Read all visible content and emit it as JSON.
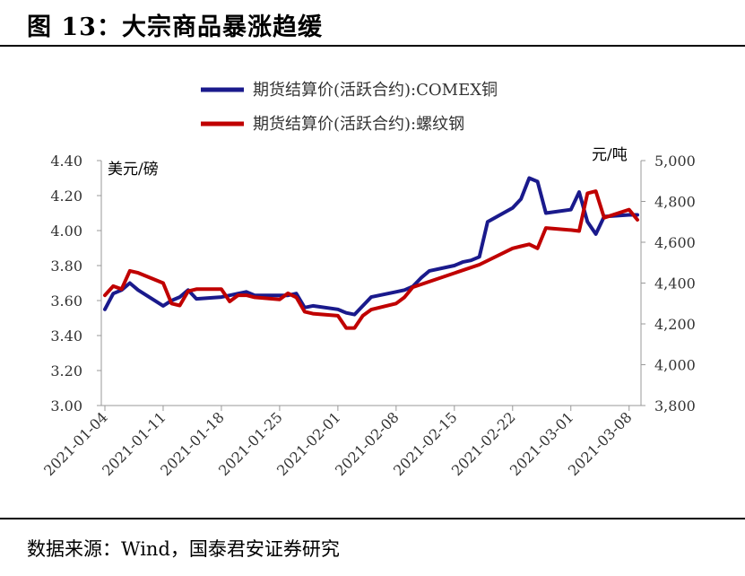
{
  "figure": {
    "title": "图 13：大宗商品暴涨趋缓",
    "source": "数据来源：Wind，国泰君安证券研究"
  },
  "chart_data": {
    "type": "line",
    "x_ticks": [
      "2021-01-04",
      "2021-01-11",
      "2021-01-18",
      "2021-01-25",
      "2021-02-01",
      "2021-02-08",
      "2021-02-15",
      "2021-02-22",
      "2021-03-01",
      "2021-03-08"
    ],
    "xlim": [
      "2021-01-04",
      "2021-03-09"
    ],
    "left_axis": {
      "unit": "美元/磅",
      "ticks": [
        "3.00",
        "3.20",
        "3.40",
        "3.60",
        "3.80",
        "4.00",
        "4.20",
        "4.40"
      ],
      "ylim": [
        3.0,
        4.4
      ]
    },
    "right_axis": {
      "unit": "元/吨",
      "ticks": [
        "3,800",
        "4,000",
        "4,200",
        "4,400",
        "4,600",
        "4,800",
        "5,000"
      ],
      "ylim": [
        3800,
        5000
      ]
    },
    "legend_position": "top-center",
    "grid": false,
    "series": [
      {
        "name": "期货结算价(活跃合约):COMEX铜",
        "axis": "left",
        "color": "#1a1a8c",
        "x": [
          "2021-01-04",
          "2021-01-05",
          "2021-01-06",
          "2021-01-07",
          "2021-01-08",
          "2021-01-11",
          "2021-01-12",
          "2021-01-13",
          "2021-01-14",
          "2021-01-15",
          "2021-01-18",
          "2021-01-19",
          "2021-01-20",
          "2021-01-21",
          "2021-01-22",
          "2021-01-25",
          "2021-01-26",
          "2021-01-27",
          "2021-01-28",
          "2021-01-29",
          "2021-02-01",
          "2021-02-02",
          "2021-02-03",
          "2021-02-04",
          "2021-02-05",
          "2021-02-08",
          "2021-02-09",
          "2021-02-10",
          "2021-02-11",
          "2021-02-12",
          "2021-02-15",
          "2021-02-16",
          "2021-02-17",
          "2021-02-18",
          "2021-02-19",
          "2021-02-22",
          "2021-02-23",
          "2021-02-24",
          "2021-02-25",
          "2021-02-26",
          "2021-03-01",
          "2021-03-02",
          "2021-03-03",
          "2021-03-04",
          "2021-03-05",
          "2021-03-08",
          "2021-03-09"
        ],
        "values": [
          3.55,
          3.64,
          3.66,
          3.7,
          3.66,
          3.57,
          3.6,
          3.62,
          3.66,
          3.61,
          3.62,
          3.63,
          3.64,
          3.65,
          3.63,
          3.63,
          3.63,
          3.64,
          3.56,
          3.57,
          3.55,
          3.53,
          3.52,
          3.57,
          3.62,
          3.65,
          3.66,
          3.68,
          3.73,
          3.77,
          3.8,
          3.82,
          3.83,
          3.85,
          4.05,
          4.13,
          4.18,
          4.3,
          4.28,
          4.1,
          4.12,
          4.22,
          4.05,
          3.98,
          4.08,
          4.09,
          4.09
        ]
      },
      {
        "name": "期货结算价(活跃合约):螺纹钢",
        "axis": "right",
        "color": "#c00000",
        "x": [
          "2021-01-04",
          "2021-01-05",
          "2021-01-06",
          "2021-01-07",
          "2021-01-08",
          "2021-01-11",
          "2021-01-12",
          "2021-01-13",
          "2021-01-14",
          "2021-01-15",
          "2021-01-18",
          "2021-01-19",
          "2021-01-20",
          "2021-01-21",
          "2021-01-22",
          "2021-01-25",
          "2021-01-26",
          "2021-01-27",
          "2021-01-28",
          "2021-01-29",
          "2021-02-01",
          "2021-02-02",
          "2021-02-03",
          "2021-02-04",
          "2021-02-05",
          "2021-02-08",
          "2021-02-09",
          "2021-02-10",
          "2021-02-18",
          "2021-02-19",
          "2021-02-22",
          "2021-02-23",
          "2021-02-24",
          "2021-02-25",
          "2021-02-26",
          "2021-03-01",
          "2021-03-02",
          "2021-03-03",
          "2021-03-04",
          "2021-03-05",
          "2021-03-08",
          "2021-03-09"
        ],
        "values": [
          4340,
          4385,
          4370,
          4460,
          4450,
          4400,
          4300,
          4290,
          4360,
          4370,
          4370,
          4310,
          4340,
          4340,
          4330,
          4320,
          4350,
          4330,
          4260,
          4250,
          4240,
          4180,
          4180,
          4240,
          4270,
          4300,
          4330,
          4380,
          4490,
          4510,
          4570,
          4580,
          4590,
          4570,
          4670,
          4660,
          4655,
          4840,
          4850,
          4720,
          4760,
          4710
        ]
      }
    ]
  }
}
